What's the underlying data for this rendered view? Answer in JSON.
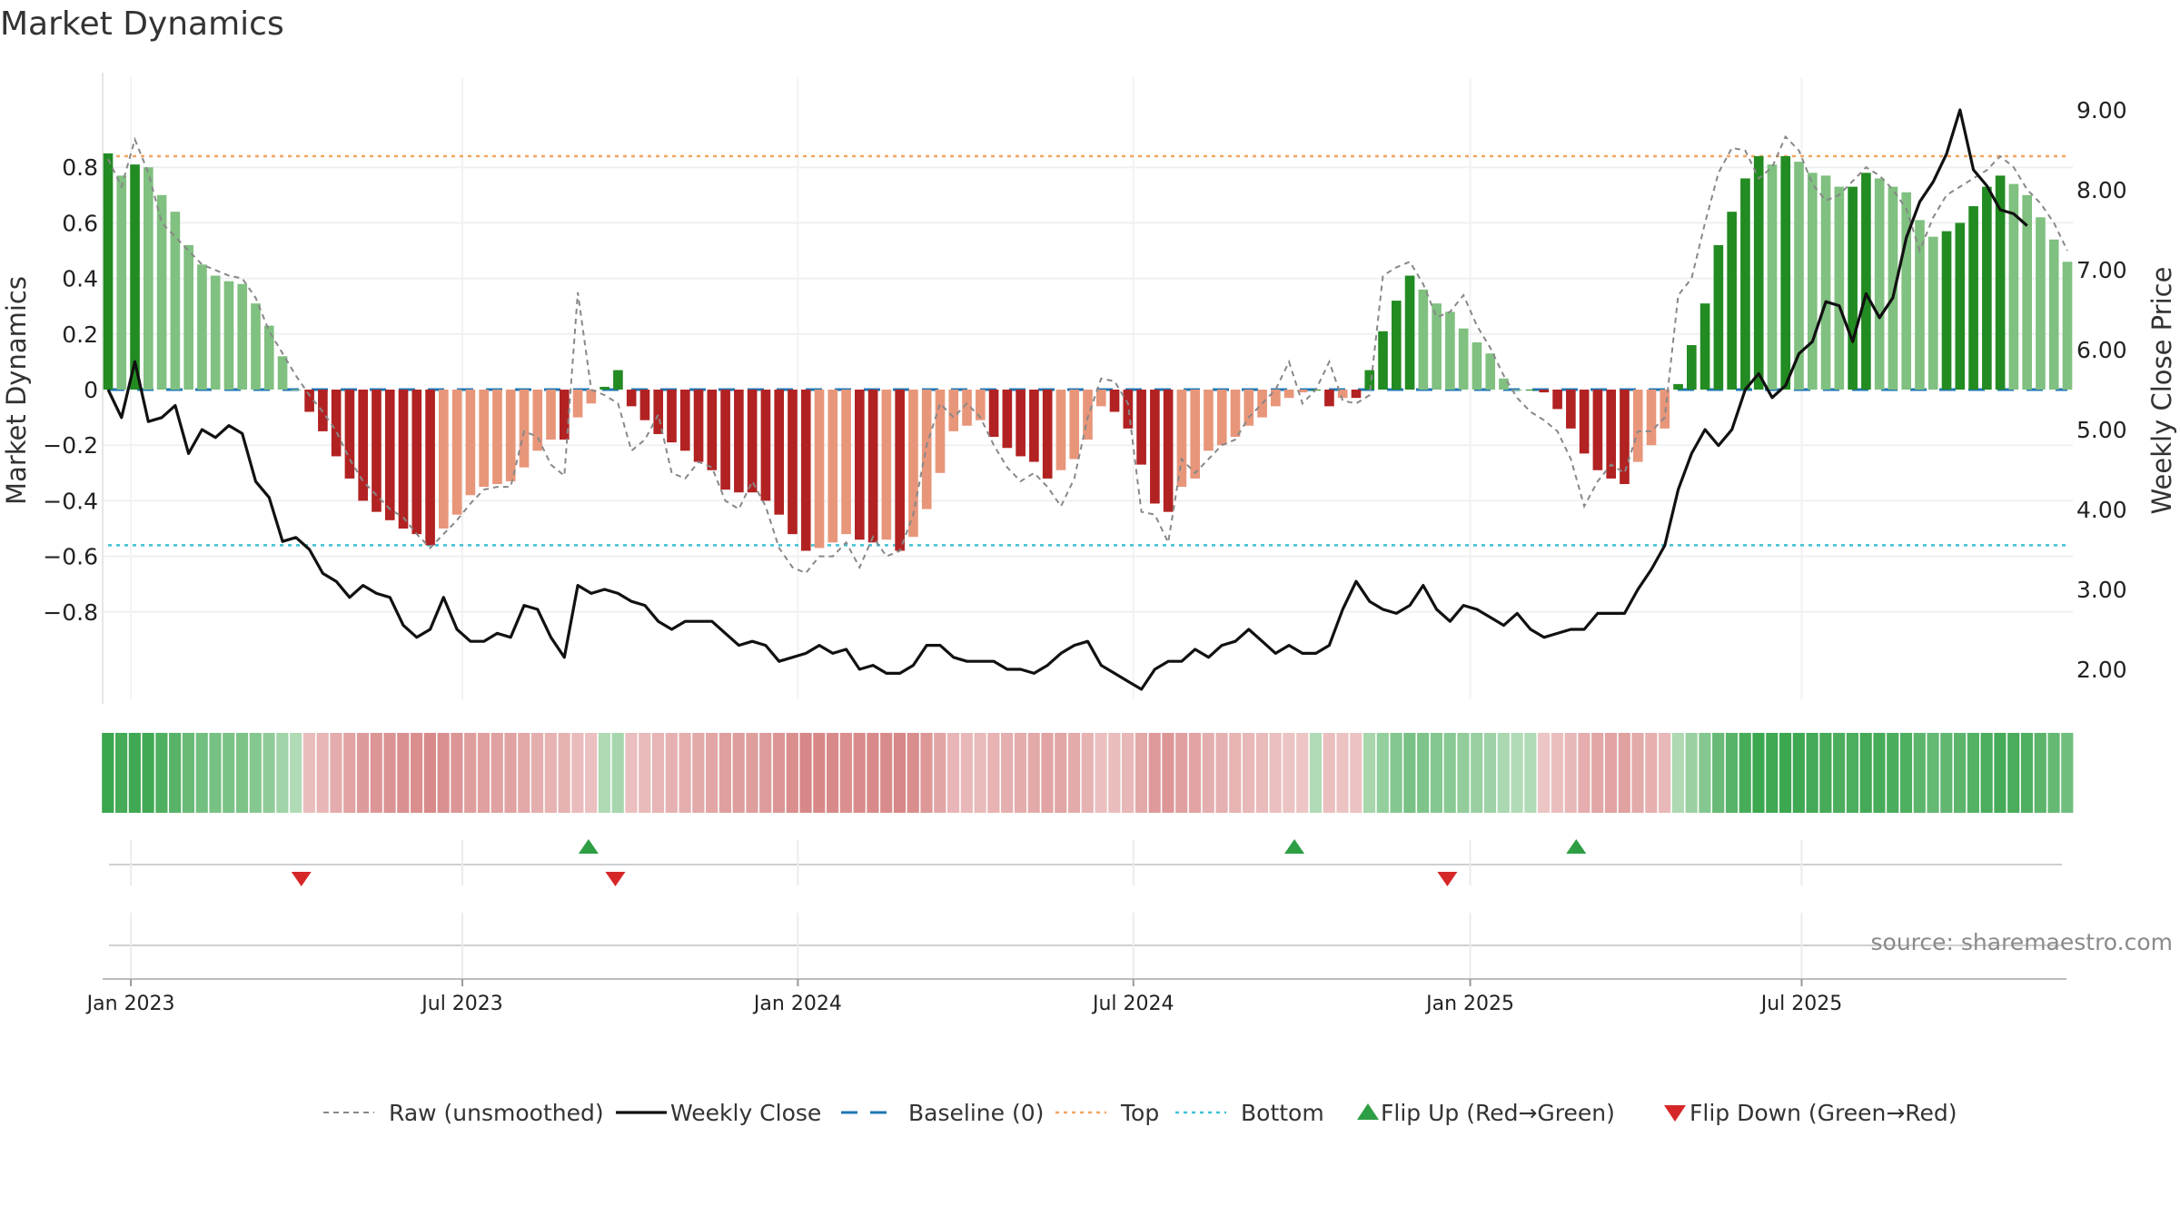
{
  "title": "Market Dynamics",
  "source_note": "source: sharemaestro.com",
  "chart_data": {
    "type": "bar",
    "title": "Market Dynamics",
    "ylabel_left": "Market Dynamics",
    "ylabel_right": "Weekly Close Price",
    "ylim_left": [
      -0.9,
      0.93
    ],
    "ylim_right": [
      1.5,
      9.5
    ],
    "left_ticks": [
      "0.8",
      "0.6",
      "0.4",
      "0.2",
      "0",
      "−0.2",
      "−0.4",
      "−0.6",
      "−0.8"
    ],
    "right_ticks": [
      "9.00",
      "8.00",
      "7.00",
      "6.00",
      "5.00",
      "4.00",
      "3.00",
      "2.00"
    ],
    "x_ticks": [
      "Jan 2023",
      "Jul 2023",
      "Jan 2024",
      "Jul 2024",
      "Jan 2025",
      "Jul 2025"
    ],
    "x_tick_weeks": [
      1.7,
      26.4,
      51.4,
      76.4,
      101.5,
      126.2
    ],
    "top_level": 0.84,
    "bottom_level": -0.56,
    "baseline": 0,
    "bars": [
      0.85,
      0.77,
      0.81,
      0.8,
      0.7,
      0.64,
      0.52,
      0.45,
      0.41,
      0.39,
      0.38,
      0.31,
      0.23,
      0.12,
      0,
      -0.08,
      -0.15,
      -0.24,
      -0.32,
      -0.4,
      -0.44,
      -0.47,
      -0.5,
      -0.52,
      -0.56,
      -0.5,
      -0.45,
      -0.38,
      -0.35,
      -0.34,
      -0.33,
      -0.28,
      -0.22,
      -0.18,
      -0.18,
      -0.1,
      -0.05,
      0.01,
      0.07,
      -0.06,
      -0.11,
      -0.16,
      -0.19,
      -0.22,
      -0.26,
      -0.29,
      -0.36,
      -0.37,
      -0.37,
      -0.4,
      -0.45,
      -0.52,
      -0.58,
      -0.57,
      -0.55,
      -0.52,
      -0.54,
      -0.55,
      -0.54,
      -0.58,
      -0.53,
      -0.43,
      -0.3,
      -0.15,
      -0.13,
      -0.11,
      -0.17,
      -0.21,
      -0.24,
      -0.26,
      -0.32,
      -0.29,
      -0.25,
      -0.18,
      -0.06,
      -0.08,
      -0.14,
      -0.27,
      -0.41,
      -0.44,
      -0.35,
      -0.32,
      -0.22,
      -0.2,
      -0.17,
      -0.13,
      -0.1,
      -0.06,
      -0.03,
      -0.01,
      0,
      -0.06,
      -0.03,
      -0.03,
      0.07,
      0.21,
      0.32,
      0.41,
      0.36,
      0.31,
      0.28,
      0.22,
      0.17,
      0.13,
      0.04,
      0,
      0,
      -0.01,
      -0.07,
      -0.14,
      -0.23,
      -0.29,
      -0.32,
      -0.34,
      -0.26,
      -0.2,
      -0.14,
      0.02,
      0.16,
      0.31,
      0.52,
      0.64,
      0.76,
      0.84,
      0.81,
      0.84,
      0.82,
      0.78,
      0.77,
      0.73,
      0.73,
      0.78,
      0.76,
      0.73,
      0.71,
      0.61,
      0.55,
      0.57,
      0.6,
      0.66,
      0.73,
      0.77,
      0.74,
      0.7,
      0.62,
      0.54,
      0.46
    ],
    "weekly_close": [
      5.5,
      5.15,
      5.85,
      5.1,
      5.15,
      5.3,
      4.7,
      5.0,
      4.9,
      5.05,
      4.95,
      4.35,
      4.15,
      3.6,
      3.65,
      3.5,
      3.2,
      3.1,
      2.9,
      3.05,
      2.95,
      2.9,
      2.55,
      2.4,
      2.5,
      2.9,
      2.5,
      2.35,
      2.35,
      2.45,
      2.4,
      2.8,
      2.75,
      2.4,
      2.15,
      3.05,
      2.95,
      3.0,
      2.95,
      2.85,
      2.8,
      2.6,
      2.5,
      2.6,
      2.6,
      2.6,
      2.45,
      2.3,
      2.35,
      2.3,
      2.1,
      2.15,
      2.2,
      2.3,
      2.2,
      2.25,
      2.0,
      2.05,
      1.95,
      1.95,
      2.05,
      2.3,
      2.3,
      2.15,
      2.1,
      2.1,
      2.1,
      2.0,
      2.0,
      1.95,
      2.05,
      2.2,
      2.3,
      2.35,
      2.05,
      1.95,
      1.85,
      1.75,
      2.0,
      2.1,
      2.1,
      2.25,
      2.15,
      2.3,
      2.35,
      2.5,
      2.35,
      2.2,
      2.3,
      2.2,
      2.2,
      2.3,
      2.75,
      3.1,
      2.85,
      2.75,
      2.7,
      2.8,
      3.05,
      2.75,
      2.6,
      2.8,
      2.75,
      2.65,
      2.55,
      2.7,
      2.5,
      2.4,
      2.45,
      2.5,
      2.5,
      2.7,
      2.7,
      2.7,
      3.0,
      3.25,
      3.55,
      4.25,
      4.7,
      5.0,
      4.8,
      5.0,
      5.5,
      5.7,
      5.4,
      5.55,
      5.95,
      6.1,
      6.6,
      6.55,
      6.1,
      6.7,
      6.4,
      6.65,
      7.4,
      7.85,
      8.1,
      8.45,
      9.0,
      8.25,
      8.05,
      7.75,
      7.7,
      7.55
    ],
    "raw": [
      0.83,
      0.73,
      0.9,
      0.78,
      0.6,
      0.55,
      0.5,
      0.45,
      0.43,
      0.41,
      0.4,
      0.33,
      0.21,
      0.13,
      0.05,
      -0.02,
      -0.08,
      -0.15,
      -0.25,
      -0.33,
      -0.38,
      -0.43,
      -0.46,
      -0.52,
      -0.57,
      -0.52,
      -0.47,
      -0.41,
      -0.36,
      -0.35,
      -0.35,
      -0.15,
      -0.17,
      -0.27,
      -0.31,
      0.35,
      0.0,
      -0.02,
      -0.05,
      -0.22,
      -0.18,
      -0.09,
      -0.3,
      -0.32,
      -0.26,
      -0.28,
      -0.4,
      -0.43,
      -0.33,
      -0.42,
      -0.57,
      -0.64,
      -0.66,
      -0.6,
      -0.6,
      -0.55,
      -0.64,
      -0.53,
      -0.6,
      -0.58,
      -0.45,
      -0.2,
      -0.05,
      -0.1,
      -0.05,
      -0.1,
      -0.2,
      -0.28,
      -0.33,
      -0.3,
      -0.35,
      -0.42,
      -0.32,
      -0.1,
      0.04,
      0.03,
      -0.05,
      -0.44,
      -0.45,
      -0.55,
      -0.25,
      -0.3,
      -0.25,
      -0.2,
      -0.18,
      -0.1,
      -0.05,
      0.0,
      0.1,
      -0.05,
      0.0,
      0.1,
      -0.04,
      -0.05,
      -0.02,
      0.41,
      0.44,
      0.46,
      0.38,
      0.26,
      0.28,
      0.34,
      0.23,
      0.15,
      0.05,
      -0.03,
      -0.08,
      -0.11,
      -0.15,
      -0.25,
      -0.42,
      -0.33,
      -0.27,
      -0.3,
      -0.15,
      -0.15,
      -0.1,
      0.34,
      0.4,
      0.6,
      0.78,
      0.87,
      0.86,
      0.76,
      0.8,
      0.91,
      0.86,
      0.74,
      0.68,
      0.7,
      0.75,
      0.8,
      0.77,
      0.72,
      0.65,
      0.5,
      0.62,
      0.7,
      0.73,
      0.76,
      0.79,
      0.84,
      0.8,
      0.72,
      0.67,
      0.6,
      0.5
    ],
    "flips_up_weeks": [
      35.8,
      88.4,
      109.4
    ],
    "flips_down_weeks": [
      14.4,
      37.8,
      99.8
    ],
    "legend": [
      {
        "label": "Raw (unsmoothed)",
        "style": "dashed-gray"
      },
      {
        "label": "Weekly Close",
        "style": "solid-black"
      },
      {
        "label": "Baseline (0)",
        "style": "dashed-blue"
      },
      {
        "label": "Top",
        "style": "dotted-orange"
      },
      {
        "label": "Bottom",
        "style": "dotted-cyan"
      },
      {
        "label": "Flip Up (Red→Green)",
        "style": "triangle-up-green"
      },
      {
        "label": "Flip Down (Green→Red)",
        "style": "triangle-down-red"
      }
    ],
    "colors": {
      "green_dark": "#228b22",
      "green_light": "#80c080",
      "red_dark": "#b22222",
      "red_light": "#e8967a",
      "baseline": "#1f77b4",
      "top": "#f4a460",
      "bottom": "#3ec1d3",
      "flip_up": "#2e9e44",
      "flip_down": "#d62728",
      "close": "#111111",
      "raw": "#888888"
    }
  }
}
